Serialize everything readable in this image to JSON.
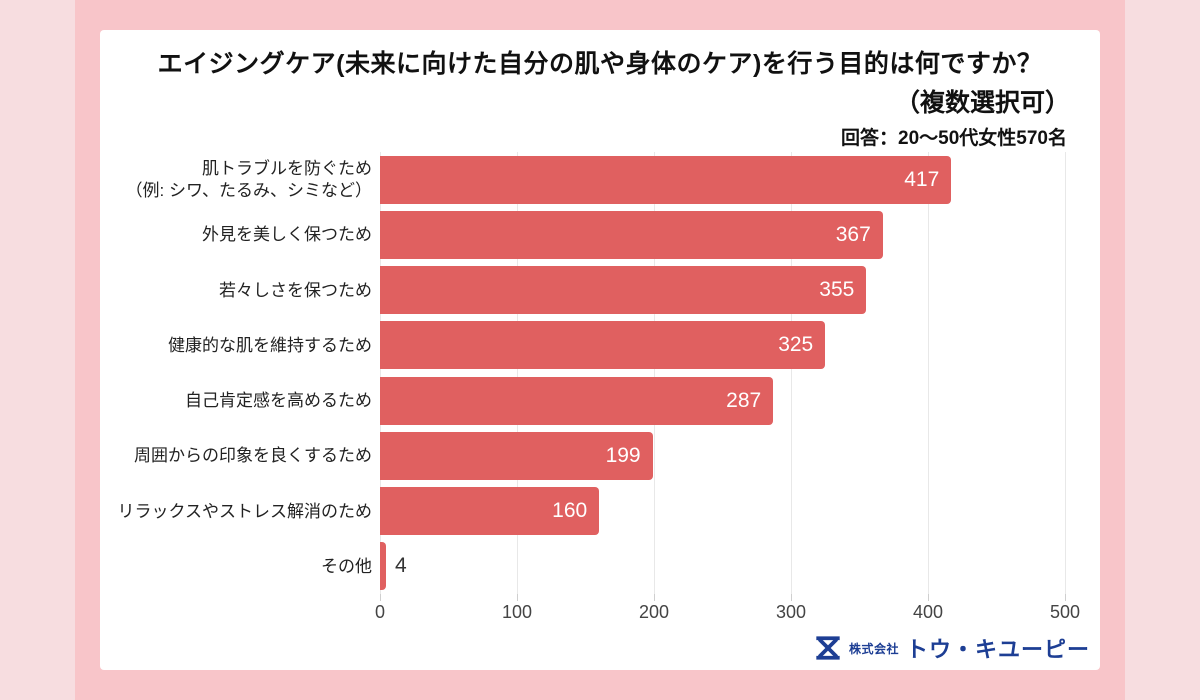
{
  "page": {
    "outer_bg": "#f7dde0",
    "frame_bg": "#f8c5c9",
    "card_bg": "#ffffff"
  },
  "chart_data": {
    "type": "bar",
    "orientation": "horizontal",
    "title_line1": "エイジングケア(未来に向けた自分の肌や身体のケア)を行う目的は何ですか？",
    "title_line2": "（複数選択可）",
    "subtitle": "回答：20〜50代女性570名",
    "categories": [
      {
        "lines": [
          "肌トラブルを防ぐため",
          "（例: シワ、たるみ、シミなど）"
        ]
      },
      {
        "lines": [
          "外見を美しく保つため"
        ]
      },
      {
        "lines": [
          "若々しさを保つため"
        ]
      },
      {
        "lines": [
          "健康的な肌を維持するため"
        ]
      },
      {
        "lines": [
          "自己肯定感を高めるため"
        ]
      },
      {
        "lines": [
          "周囲からの印象を良くするため"
        ]
      },
      {
        "lines": [
          "リラックスやストレス解消のため"
        ]
      },
      {
        "lines": [
          "その他"
        ]
      }
    ],
    "values": [
      417,
      367,
      355,
      325,
      287,
      199,
      160,
      4
    ],
    "xlim": [
      0,
      500
    ],
    "x_ticks": [
      0,
      100,
      200,
      300,
      400,
      500
    ],
    "grid": true,
    "legend": false,
    "bar_color": "#e06060",
    "value_inside_color": "#ffffff",
    "value_outside_color": "#333333",
    "gridline_color": "#e8e8e8"
  },
  "footer": {
    "company_prefix": "株式会社",
    "company_name": "トウ・キユーピー",
    "logo_color": "#1d3e94"
  }
}
